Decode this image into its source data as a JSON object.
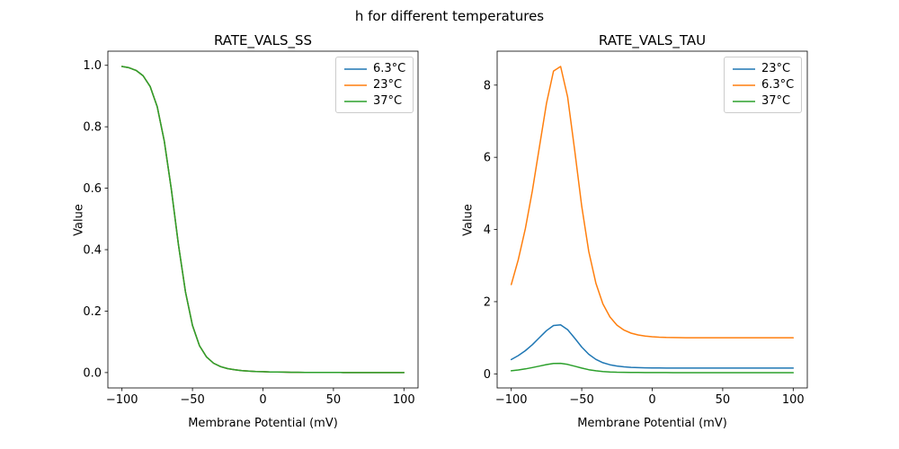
{
  "figure": {
    "suptitle": "h for different temperatures",
    "background": "#ffffff",
    "text_color": "#000000"
  },
  "chart_data": [
    {
      "type": "line",
      "title": "RATE_VALS_SS",
      "xlabel": "Membrane Potential (mV)",
      "ylabel": "Value",
      "xlim": [
        -110,
        110
      ],
      "ylim": [
        -0.05,
        1.046
      ],
      "grid": false,
      "legend_position": "upper right",
      "xticks": [
        {
          "v": -100,
          "label": "−100"
        },
        {
          "v": -50,
          "label": "−50"
        },
        {
          "v": 0,
          "label": "0"
        },
        {
          "v": 50,
          "label": "50"
        },
        {
          "v": 100,
          "label": "100"
        }
      ],
      "yticks": [
        {
          "v": 0.0,
          "label": "0.0"
        },
        {
          "v": 0.2,
          "label": "0.2"
        },
        {
          "v": 0.4,
          "label": "0.4"
        },
        {
          "v": 0.6,
          "label": "0.6"
        },
        {
          "v": 0.8,
          "label": "0.8"
        },
        {
          "v": 1.0,
          "label": "1.0"
        }
      ],
      "x": [
        -100,
        -95,
        -90,
        -85,
        -80,
        -75,
        -70,
        -65,
        -60,
        -55,
        -50,
        -45,
        -40,
        -35,
        -30,
        -25,
        -20,
        -15,
        -10,
        -5,
        0,
        5,
        10,
        15,
        20,
        25,
        30,
        35,
        40,
        45,
        50,
        55,
        60,
        65,
        70,
        75,
        80,
        85,
        90,
        95,
        100
      ],
      "series": [
        {
          "name": "6.3°C",
          "color": "#1f77b4",
          "values": [
            0.9963,
            0.9922,
            0.9836,
            0.966,
            0.931,
            0.8652,
            0.7541,
            0.5961,
            0.4182,
            0.2626,
            0.1534,
            0.0874,
            0.0504,
            0.0303,
            0.0192,
            0.0128,
            0.0089,
            0.0065,
            0.0048,
            0.0036,
            0.0028,
            0.0021,
            0.0017,
            0.0013,
            0.001,
            0.0008,
            0.0006,
            0.0005,
            0.0004,
            0.0003,
            0.0002,
            0.0002,
            0.0001,
            0.0001,
            0.0001,
            0.0001,
            0.0,
            0.0,
            0.0,
            0.0,
            0.0
          ]
        },
        {
          "name": "23°C",
          "color": "#ff7f0e",
          "values": [
            0.9963,
            0.9922,
            0.9836,
            0.966,
            0.931,
            0.8652,
            0.7541,
            0.5961,
            0.4182,
            0.2626,
            0.1534,
            0.0874,
            0.0504,
            0.0303,
            0.0192,
            0.0128,
            0.0089,
            0.0065,
            0.0048,
            0.0036,
            0.0028,
            0.0021,
            0.0017,
            0.0013,
            0.001,
            0.0008,
            0.0006,
            0.0005,
            0.0004,
            0.0003,
            0.0002,
            0.0002,
            0.0001,
            0.0001,
            0.0001,
            0.0001,
            0.0,
            0.0,
            0.0,
            0.0,
            0.0
          ]
        },
        {
          "name": "37°C",
          "color": "#2ca02c",
          "values": [
            0.9963,
            0.9922,
            0.9836,
            0.966,
            0.931,
            0.8652,
            0.7541,
            0.5961,
            0.4182,
            0.2626,
            0.1534,
            0.0874,
            0.0504,
            0.0303,
            0.0192,
            0.0128,
            0.0089,
            0.0065,
            0.0048,
            0.0036,
            0.0028,
            0.0021,
            0.0017,
            0.0013,
            0.001,
            0.0008,
            0.0006,
            0.0005,
            0.0004,
            0.0003,
            0.0002,
            0.0002,
            0.0001,
            0.0001,
            0.0001,
            0.0001,
            0.0,
            0.0,
            0.0,
            0.0,
            0.0
          ]
        }
      ]
    },
    {
      "type": "line",
      "title": "RATE_VALS_TAU",
      "xlabel": "Membrane Potential (mV)",
      "ylabel": "Value",
      "xlim": [
        -110,
        110
      ],
      "ylim": [
        -0.39,
        8.94
      ],
      "grid": false,
      "legend_position": "upper right",
      "xticks": [
        {
          "v": -100,
          "label": "−100"
        },
        {
          "v": -50,
          "label": "−50"
        },
        {
          "v": 0,
          "label": "0"
        },
        {
          "v": 50,
          "label": "50"
        },
        {
          "v": 100,
          "label": "100"
        }
      ],
      "yticks": [
        {
          "v": 0,
          "label": "0"
        },
        {
          "v": 2,
          "label": "2"
        },
        {
          "v": 4,
          "label": "4"
        },
        {
          "v": 6,
          "label": "6"
        },
        {
          "v": 8,
          "label": "8"
        }
      ],
      "x": [
        -100,
        -95,
        -90,
        -85,
        -80,
        -75,
        -70,
        -65,
        -60,
        -55,
        -50,
        -45,
        -40,
        -35,
        -30,
        -25,
        -20,
        -15,
        -10,
        -5,
        0,
        5,
        10,
        15,
        20,
        25,
        30,
        35,
        40,
        45,
        50,
        55,
        60,
        65,
        70,
        75,
        80,
        85,
        90,
        95,
        100
      ],
      "series": [
        {
          "name": "23°C",
          "color": "#1f77b4",
          "values": [
            0.395,
            0.505,
            0.643,
            0.81,
            1.003,
            1.197,
            1.339,
            1.36,
            1.224,
            0.988,
            0.741,
            0.542,
            0.402,
            0.31,
            0.252,
            0.216,
            0.194,
            0.18,
            0.172,
            0.167,
            0.164,
            0.162,
            0.161,
            0.16,
            0.16,
            0.16,
            0.16,
            0.16,
            0.16,
            0.16,
            0.16,
            0.16,
            0.16,
            0.16,
            0.16,
            0.16,
            0.16,
            0.16,
            0.16,
            0.16,
            0.16
          ]
        },
        {
          "name": "6.3°C",
          "color": "#ff7f0e",
          "values": [
            2.473,
            3.163,
            4.026,
            5.077,
            6.282,
            7.496,
            8.39,
            8.516,
            7.67,
            6.186,
            4.641,
            3.393,
            2.515,
            1.939,
            1.576,
            1.35,
            1.212,
            1.128,
            1.077,
            1.046,
            1.027,
            1.016,
            1.009,
            1.005,
            1.003,
            1.002,
            1.001,
            1.0,
            1.0,
            1.0,
            1.0,
            1.0,
            1.0,
            1.0,
            1.0,
            1.0,
            1.0,
            1.0,
            1.0,
            1.0,
            1.0
          ]
        },
        {
          "name": "37°C",
          "color": "#2ca02c",
          "values": [
            0.085,
            0.108,
            0.138,
            0.174,
            0.215,
            0.257,
            0.288,
            0.292,
            0.263,
            0.212,
            0.159,
            0.116,
            0.086,
            0.066,
            0.054,
            0.046,
            0.042,
            0.039,
            0.037,
            0.036,
            0.035,
            0.035,
            0.035,
            0.034,
            0.034,
            0.034,
            0.034,
            0.034,
            0.034,
            0.034,
            0.034,
            0.034,
            0.034,
            0.034,
            0.034,
            0.034,
            0.034,
            0.034,
            0.034,
            0.034,
            0.034
          ]
        }
      ]
    }
  ]
}
